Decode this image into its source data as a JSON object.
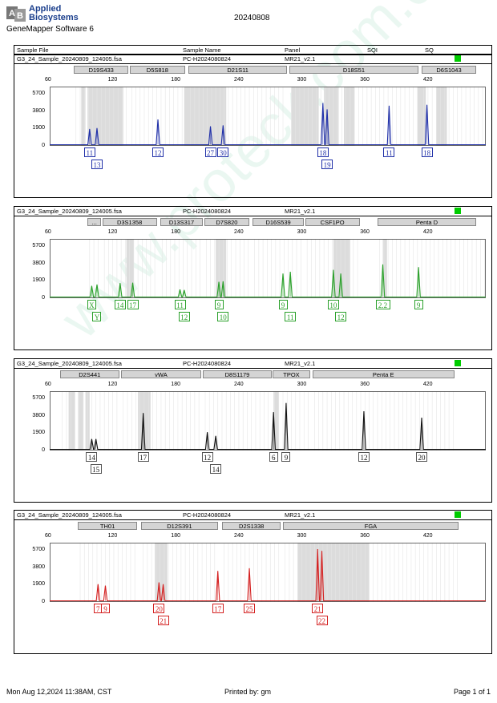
{
  "header": {
    "logo_line1": "Applied",
    "logo_line2": "Biosystems",
    "software": "GeneMapper Software 6",
    "date": "20240808"
  },
  "columns": [
    "Sample File",
    "Sample Name",
    "Panel",
    "SQI",
    "SQ"
  ],
  "footer": {
    "left": "Mon Aug 12,2024 11:38AM, CST",
    "center": "Printed by: gm",
    "right": "Page 1 of 1"
  },
  "watermark": "www.proteck.com.cn",
  "colors": {
    "blue": "#1f2fa8",
    "green": "#2aa02a",
    "black": "#111111",
    "red": "#d42020",
    "status": "#00cc00"
  },
  "chart_data": [
    {
      "type": "line",
      "sample_file": "G3_24_Sample_20240809_124005.fsa",
      "sample_name": "PC-H2024080824",
      "panel": "MR21_v2.1",
      "color": "#1f2fa8",
      "x_ticks": [
        60,
        120,
        180,
        240,
        300,
        360,
        420
      ],
      "y_ticks": [
        0,
        1900,
        3800,
        5700
      ],
      "xlim": [
        60,
        475
      ],
      "ylim": [
        0,
        6500
      ],
      "markers": [
        {
          "name": "D19S433",
          "from": 83,
          "to": 135
        },
        {
          "name": "D5S818",
          "from": 136,
          "to": 189
        },
        {
          "name": "D21S11",
          "from": 192,
          "to": 286
        },
        {
          "name": "D18S51",
          "from": 288,
          "to": 411
        },
        {
          "name": "D6S1043",
          "from": 414,
          "to": 490
        }
      ],
      "peaks": [
        {
          "x": 98,
          "h": 1850
        },
        {
          "x": 105,
          "h": 1950
        },
        {
          "x": 163,
          "h": 2900
        },
        {
          "x": 213,
          "h": 2150
        },
        {
          "x": 225,
          "h": 2250
        },
        {
          "x": 320,
          "h": 4700
        },
        {
          "x": 324,
          "h": 4000
        },
        {
          "x": 383,
          "h": 4400
        },
        {
          "x": 419,
          "h": 4500
        }
      ],
      "labels": [
        {
          "text": "11",
          "x": 98,
          "row": 1
        },
        {
          "text": "13",
          "x": 105,
          "row": 2
        },
        {
          "text": "12",
          "x": 163,
          "row": 1
        },
        {
          "text": "27",
          "x": 213,
          "row": 1
        },
        {
          "text": "30",
          "x": 225,
          "row": 1
        },
        {
          "text": "18",
          "x": 320,
          "row": 1
        },
        {
          "text": "19",
          "x": 324,
          "row": 2
        },
        {
          "text": "11",
          "x": 383,
          "row": 1
        },
        {
          "text": "18",
          "x": 419,
          "row": 1
        }
      ],
      "bins": [
        [
          90,
          94
        ],
        [
          96,
          130
        ],
        [
          188,
          228
        ],
        [
          290,
          316
        ],
        [
          321,
          335
        ],
        [
          340,
          350
        ],
        [
          410,
          418
        ],
        [
          428,
          438
        ]
      ]
    },
    {
      "type": "line",
      "sample_file": "G3_24_Sample_20240809_124005.fsa",
      "sample_name": "PC-H2024080824",
      "panel": "MR21_v2.1",
      "color": "#2aa02a",
      "x_ticks": [
        60,
        120,
        180,
        240,
        300,
        360,
        420
      ],
      "y_ticks": [
        0,
        1900,
        3800,
        5700
      ],
      "xlim": [
        60,
        475
      ],
      "ylim": [
        0,
        6500
      ],
      "markers": [
        {
          "name": "...",
          "from": 96,
          "to": 109
        },
        {
          "name": "D3S1358",
          "from": 110,
          "to": 162
        },
        {
          "name": "D13S317",
          "from": 165,
          "to": 206
        },
        {
          "name": "D7S820",
          "from": 207,
          "to": 250
        },
        {
          "name": "D16S539",
          "from": 253,
          "to": 302
        },
        {
          "name": "CSF1PO",
          "from": 303,
          "to": 355
        },
        {
          "name": "Penta D",
          "from": 372,
          "to": 478
        }
      ],
      "peaks": [
        {
          "x": 100,
          "h": 1350
        },
        {
          "x": 105,
          "h": 1500
        },
        {
          "x": 127,
          "h": 1650
        },
        {
          "x": 139,
          "h": 1700
        },
        {
          "x": 184,
          "h": 950
        },
        {
          "x": 188,
          "h": 900
        },
        {
          "x": 221,
          "h": 1800
        },
        {
          "x": 225,
          "h": 1850
        },
        {
          "x": 282,
          "h": 2700
        },
        {
          "x": 289,
          "h": 2900
        },
        {
          "x": 330,
          "h": 3100
        },
        {
          "x": 337,
          "h": 2700
        },
        {
          "x": 377,
          "h": 3700
        },
        {
          "x": 411,
          "h": 3400
        }
      ],
      "labels": [
        {
          "text": "X",
          "x": 100,
          "row": 1
        },
        {
          "text": "Y",
          "x": 105,
          "row": 2
        },
        {
          "text": "14",
          "x": 127,
          "row": 1
        },
        {
          "text": "17",
          "x": 139,
          "row": 1
        },
        {
          "text": "11",
          "x": 184,
          "row": 1
        },
        {
          "text": "12",
          "x": 188,
          "row": 2
        },
        {
          "text": "9",
          "x": 221,
          "row": 1
        },
        {
          "text": "10",
          "x": 225,
          "row": 2
        },
        {
          "text": "9",
          "x": 282,
          "row": 1
        },
        {
          "text": "11",
          "x": 289,
          "row": 2
        },
        {
          "text": "10",
          "x": 330,
          "row": 1
        },
        {
          "text": "12",
          "x": 337,
          "row": 2
        },
        {
          "text": "2.2",
          "x": 377,
          "row": 1
        },
        {
          "text": "9",
          "x": 411,
          "row": 1
        }
      ],
      "bins": [
        [
          133,
          140
        ],
        [
          218,
          228
        ],
        [
          330,
          346
        ],
        [
          377,
          381
        ]
      ]
    },
    {
      "type": "line",
      "sample_file": "G3_24_Sample_20240809_124005.fsa",
      "sample_name": "PC-H2024080824",
      "panel": "MR21_v2.1",
      "color": "#111111",
      "x_ticks": [
        60,
        120,
        180,
        240,
        300,
        360,
        420
      ],
      "y_ticks": [
        0,
        1900,
        3800,
        5700
      ],
      "xlim": [
        60,
        475
      ],
      "ylim": [
        0,
        6500
      ],
      "markers": [
        {
          "name": "D2S441",
          "from": 70,
          "to": 126
        },
        {
          "name": "vWA",
          "from": 128,
          "to": 204
        },
        {
          "name": "D8S1179",
          "from": 206,
          "to": 271
        },
        {
          "name": "TPOX",
          "from": 272,
          "to": 308
        },
        {
          "name": "Penta E",
          "from": 310,
          "to": 445
        }
      ],
      "peaks": [
        {
          "x": 100,
          "h": 1250
        },
        {
          "x": 104,
          "h": 1250
        },
        {
          "x": 149,
          "h": 4100
        },
        {
          "x": 210,
          "h": 2000
        },
        {
          "x": 218,
          "h": 1600
        },
        {
          "x": 273,
          "h": 4200
        },
        {
          "x": 285,
          "h": 5200
        },
        {
          "x": 359,
          "h": 4300
        },
        {
          "x": 414,
          "h": 3600
        }
      ],
      "labels": [
        {
          "text": "14",
          "x": 100,
          "row": 1
        },
        {
          "text": "15",
          "x": 104,
          "row": 2
        },
        {
          "text": "17",
          "x": 149,
          "row": 1
        },
        {
          "text": "12",
          "x": 210,
          "row": 1
        },
        {
          "text": "14",
          "x": 218,
          "row": 2
        },
        {
          "text": "6",
          "x": 273,
          "row": 1
        },
        {
          "text": "9",
          "x": 285,
          "row": 1
        },
        {
          "text": "12",
          "x": 359,
          "row": 1
        },
        {
          "text": "20",
          "x": 414,
          "row": 1
        }
      ],
      "bins": [
        [
          78,
          84
        ],
        [
          87,
          92
        ],
        [
          94,
          98
        ],
        [
          144,
          156
        ],
        [
          273,
          278
        ]
      ]
    },
    {
      "type": "line",
      "sample_file": "G3_24_Sample_20240809_124005.fsa",
      "sample_name": "PC-H2024080824",
      "panel": "MR21_v2.1",
      "color": "#d42020",
      "x_ticks": [
        60,
        120,
        180,
        240,
        300,
        360,
        420
      ],
      "y_ticks": [
        0,
        1900,
        3800,
        5700
      ],
      "xlim": [
        60,
        475
      ],
      "ylim": [
        0,
        6500
      ],
      "markers": [
        {
          "name": "TH01",
          "from": 87,
          "to": 143
        },
        {
          "name": "D12S391",
          "from": 147,
          "to": 220
        },
        {
          "name": "D2S1338",
          "from": 224,
          "to": 280
        },
        {
          "name": "FGA",
          "from": 282,
          "to": 449
        }
      ],
      "peaks": [
        {
          "x": 106,
          "h": 1950
        },
        {
          "x": 113,
          "h": 1800
        },
        {
          "x": 164,
          "h": 2150
        },
        {
          "x": 168,
          "h": 1950
        },
        {
          "x": 220,
          "h": 3400
        },
        {
          "x": 250,
          "h": 3700
        },
        {
          "x": 315,
          "h": 5800
        },
        {
          "x": 319,
          "h": 5600
        }
      ],
      "labels": [
        {
          "text": "7",
          "x": 106,
          "row": 1
        },
        {
          "text": "9",
          "x": 113,
          "row": 1
        },
        {
          "text": "20",
          "x": 164,
          "row": 1
        },
        {
          "text": "21",
          "x": 168,
          "row": 2
        },
        {
          "text": "17",
          "x": 220,
          "row": 1
        },
        {
          "text": "25",
          "x": 250,
          "row": 1
        },
        {
          "text": "21",
          "x": 315,
          "row": 1
        },
        {
          "text": "22",
          "x": 319,
          "row": 2
        }
      ],
      "bins": [
        [
          160,
          172
        ],
        [
          296,
          364
        ]
      ]
    }
  ]
}
